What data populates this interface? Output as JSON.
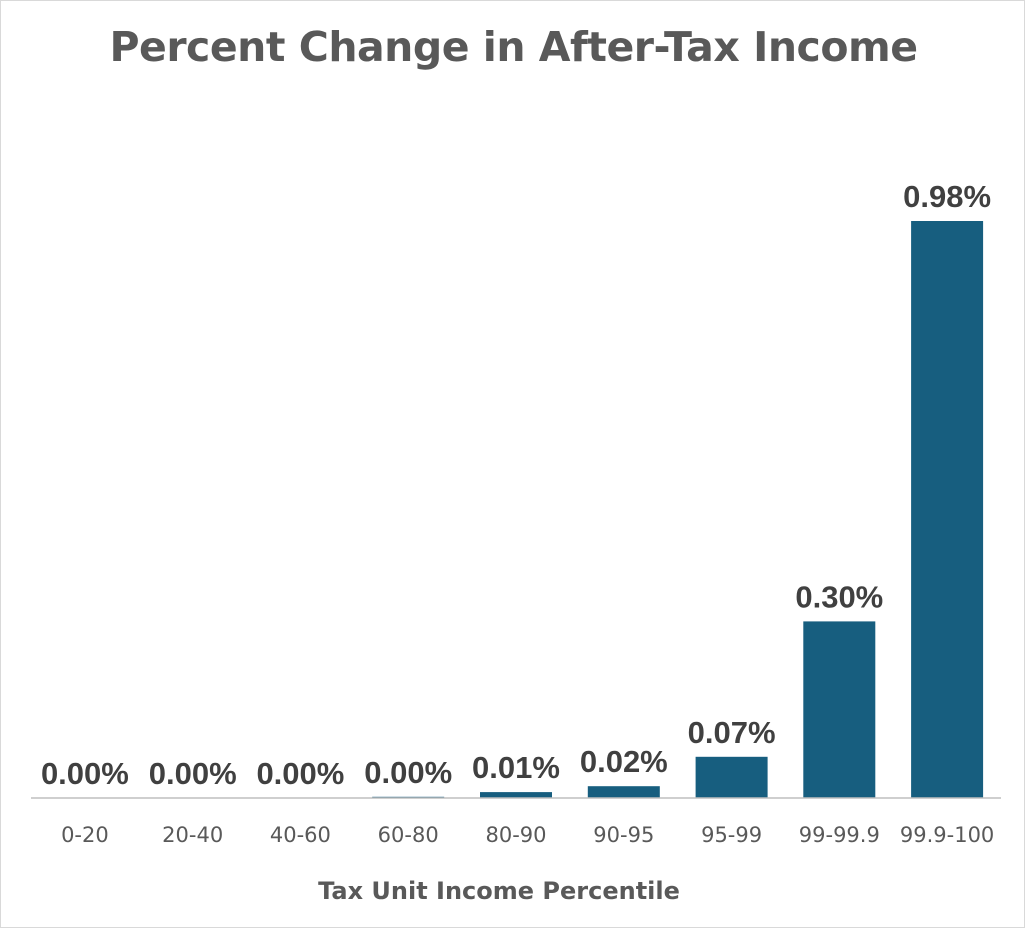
{
  "chart_data": {
    "type": "bar",
    "title": "Percent Change in After-Tax Income",
    "xlabel": "Tax Unit Income Percentile",
    "ylabel": "",
    "categories": [
      "0-20",
      "20-40",
      "40-60",
      "60-80",
      "80-90",
      "90-95",
      "95-99",
      "99-99.9",
      "99.9-100"
    ],
    "values": [
      0.0,
      0.0,
      0.0,
      0.0,
      0.01,
      0.02,
      0.07,
      0.3,
      0.98
    ],
    "data_labels": [
      "0.00%",
      "0.00%",
      "0.00%",
      "0.00%",
      "0.01%",
      "0.02%",
      "0.07%",
      "0.30%",
      "0.98%"
    ],
    "ylim": [
      0,
      0.98
    ],
    "grid": false,
    "legend": "none",
    "bar_color": "#175e7f"
  }
}
